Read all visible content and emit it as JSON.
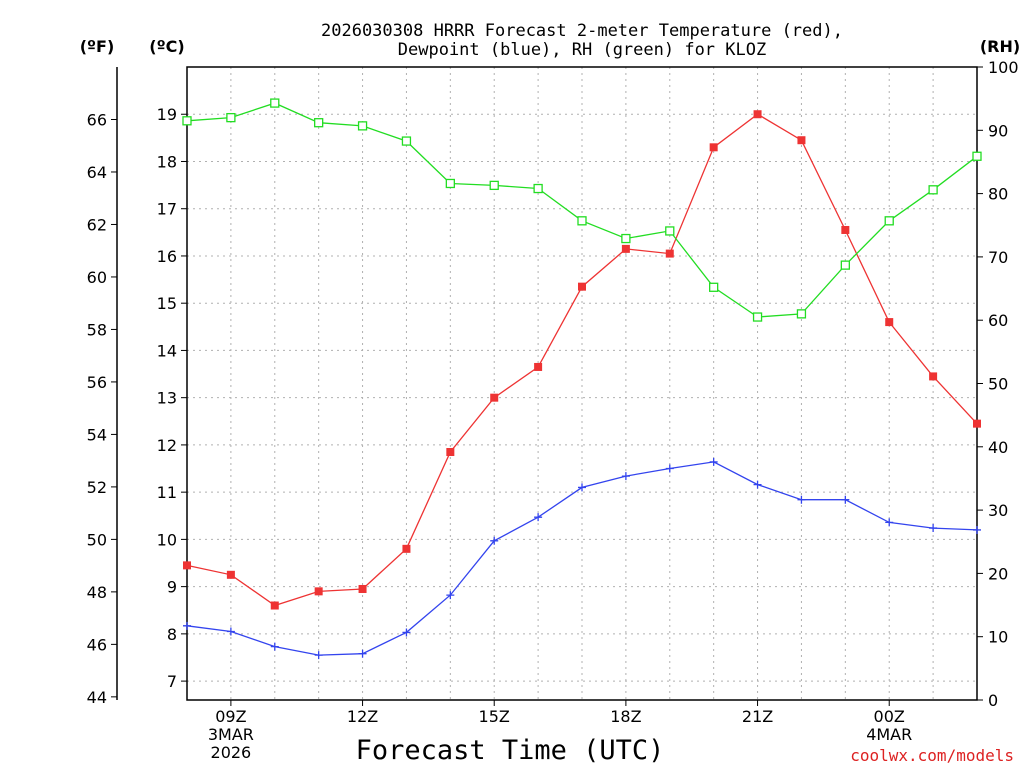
{
  "chart_data": {
    "type": "line",
    "title_line1": "2026030308 HRRR Forecast 2-meter Temperature (red),",
    "title_line2": "Dewpoint (blue), RH (green) for KLOZ",
    "xlabel": "Forecast Time (UTC)",
    "credit": "coolwx.com/models",
    "unit_f": "(ºF)",
    "unit_c": "(ºC)",
    "unit_rh": "(RH)",
    "x_hours": [
      8,
      9,
      10,
      11,
      12,
      13,
      14,
      15,
      16,
      17,
      18,
      19,
      20,
      21,
      22,
      23,
      24,
      25,
      26
    ],
    "xlim": [
      8,
      26
    ],
    "x_ticks": [
      {
        "hour": 9,
        "label": "09Z",
        "sub1": "3MAR",
        "sub2": "2026"
      },
      {
        "hour": 12,
        "label": "12Z",
        "sub1": "",
        "sub2": ""
      },
      {
        "hour": 15,
        "label": "15Z",
        "sub1": "",
        "sub2": ""
      },
      {
        "hour": 18,
        "label": "18Z",
        "sub1": "",
        "sub2": ""
      },
      {
        "hour": 21,
        "label": "21Z",
        "sub1": "",
        "sub2": ""
      },
      {
        "hour": 24,
        "label": "00Z",
        "sub1": "4MAR",
        "sub2": ""
      }
    ],
    "c_axis": {
      "ylim": [
        6.6,
        20.0
      ],
      "ticks": [
        "7",
        "8",
        "9",
        "10",
        "11",
        "12",
        "13",
        "14",
        "15",
        "16",
        "17",
        "18",
        "19"
      ]
    },
    "f_axis": {
      "ylim": [
        43.88,
        68.0
      ],
      "ticks": [
        "44",
        "46",
        "48",
        "50",
        "52",
        "54",
        "56",
        "58",
        "60",
        "62",
        "64",
        "66"
      ]
    },
    "rh_axis": {
      "ylim": [
        0,
        100
      ],
      "ticks": [
        "0",
        "10",
        "20",
        "30",
        "40",
        "50",
        "60",
        "70",
        "80",
        "90",
        "100"
      ]
    },
    "series": [
      {
        "name": "Temperature",
        "axis": "c",
        "color": "#ee3333",
        "marker": "filled-square",
        "values": [
          9.45,
          9.25,
          8.6,
          8.9,
          8.95,
          9.8,
          11.85,
          13.0,
          13.65,
          15.35,
          16.15,
          16.05,
          18.3,
          19.0,
          18.45,
          16.55,
          14.6,
          13.45,
          12.45
        ]
      },
      {
        "name": "Dewpoint",
        "axis": "c",
        "color": "#3344ee",
        "marker": "plus",
        "values": [
          8.17,
          8.05,
          7.73,
          7.55,
          7.58,
          8.03,
          8.82,
          9.97,
          10.47,
          11.1,
          11.34,
          11.5,
          11.64,
          11.16,
          10.84,
          10.84,
          10.36,
          10.24,
          10.2
        ]
      },
      {
        "name": "RH",
        "axis": "rh",
        "color": "#22dd22",
        "marker": "open-square",
        "values": [
          91.5,
          92.0,
          94.3,
          91.2,
          90.7,
          88.3,
          81.6,
          81.3,
          80.8,
          75.7,
          72.9,
          74.1,
          65.2,
          60.5,
          61.0,
          68.7,
          75.7,
          80.6,
          85.9
        ]
      }
    ]
  }
}
